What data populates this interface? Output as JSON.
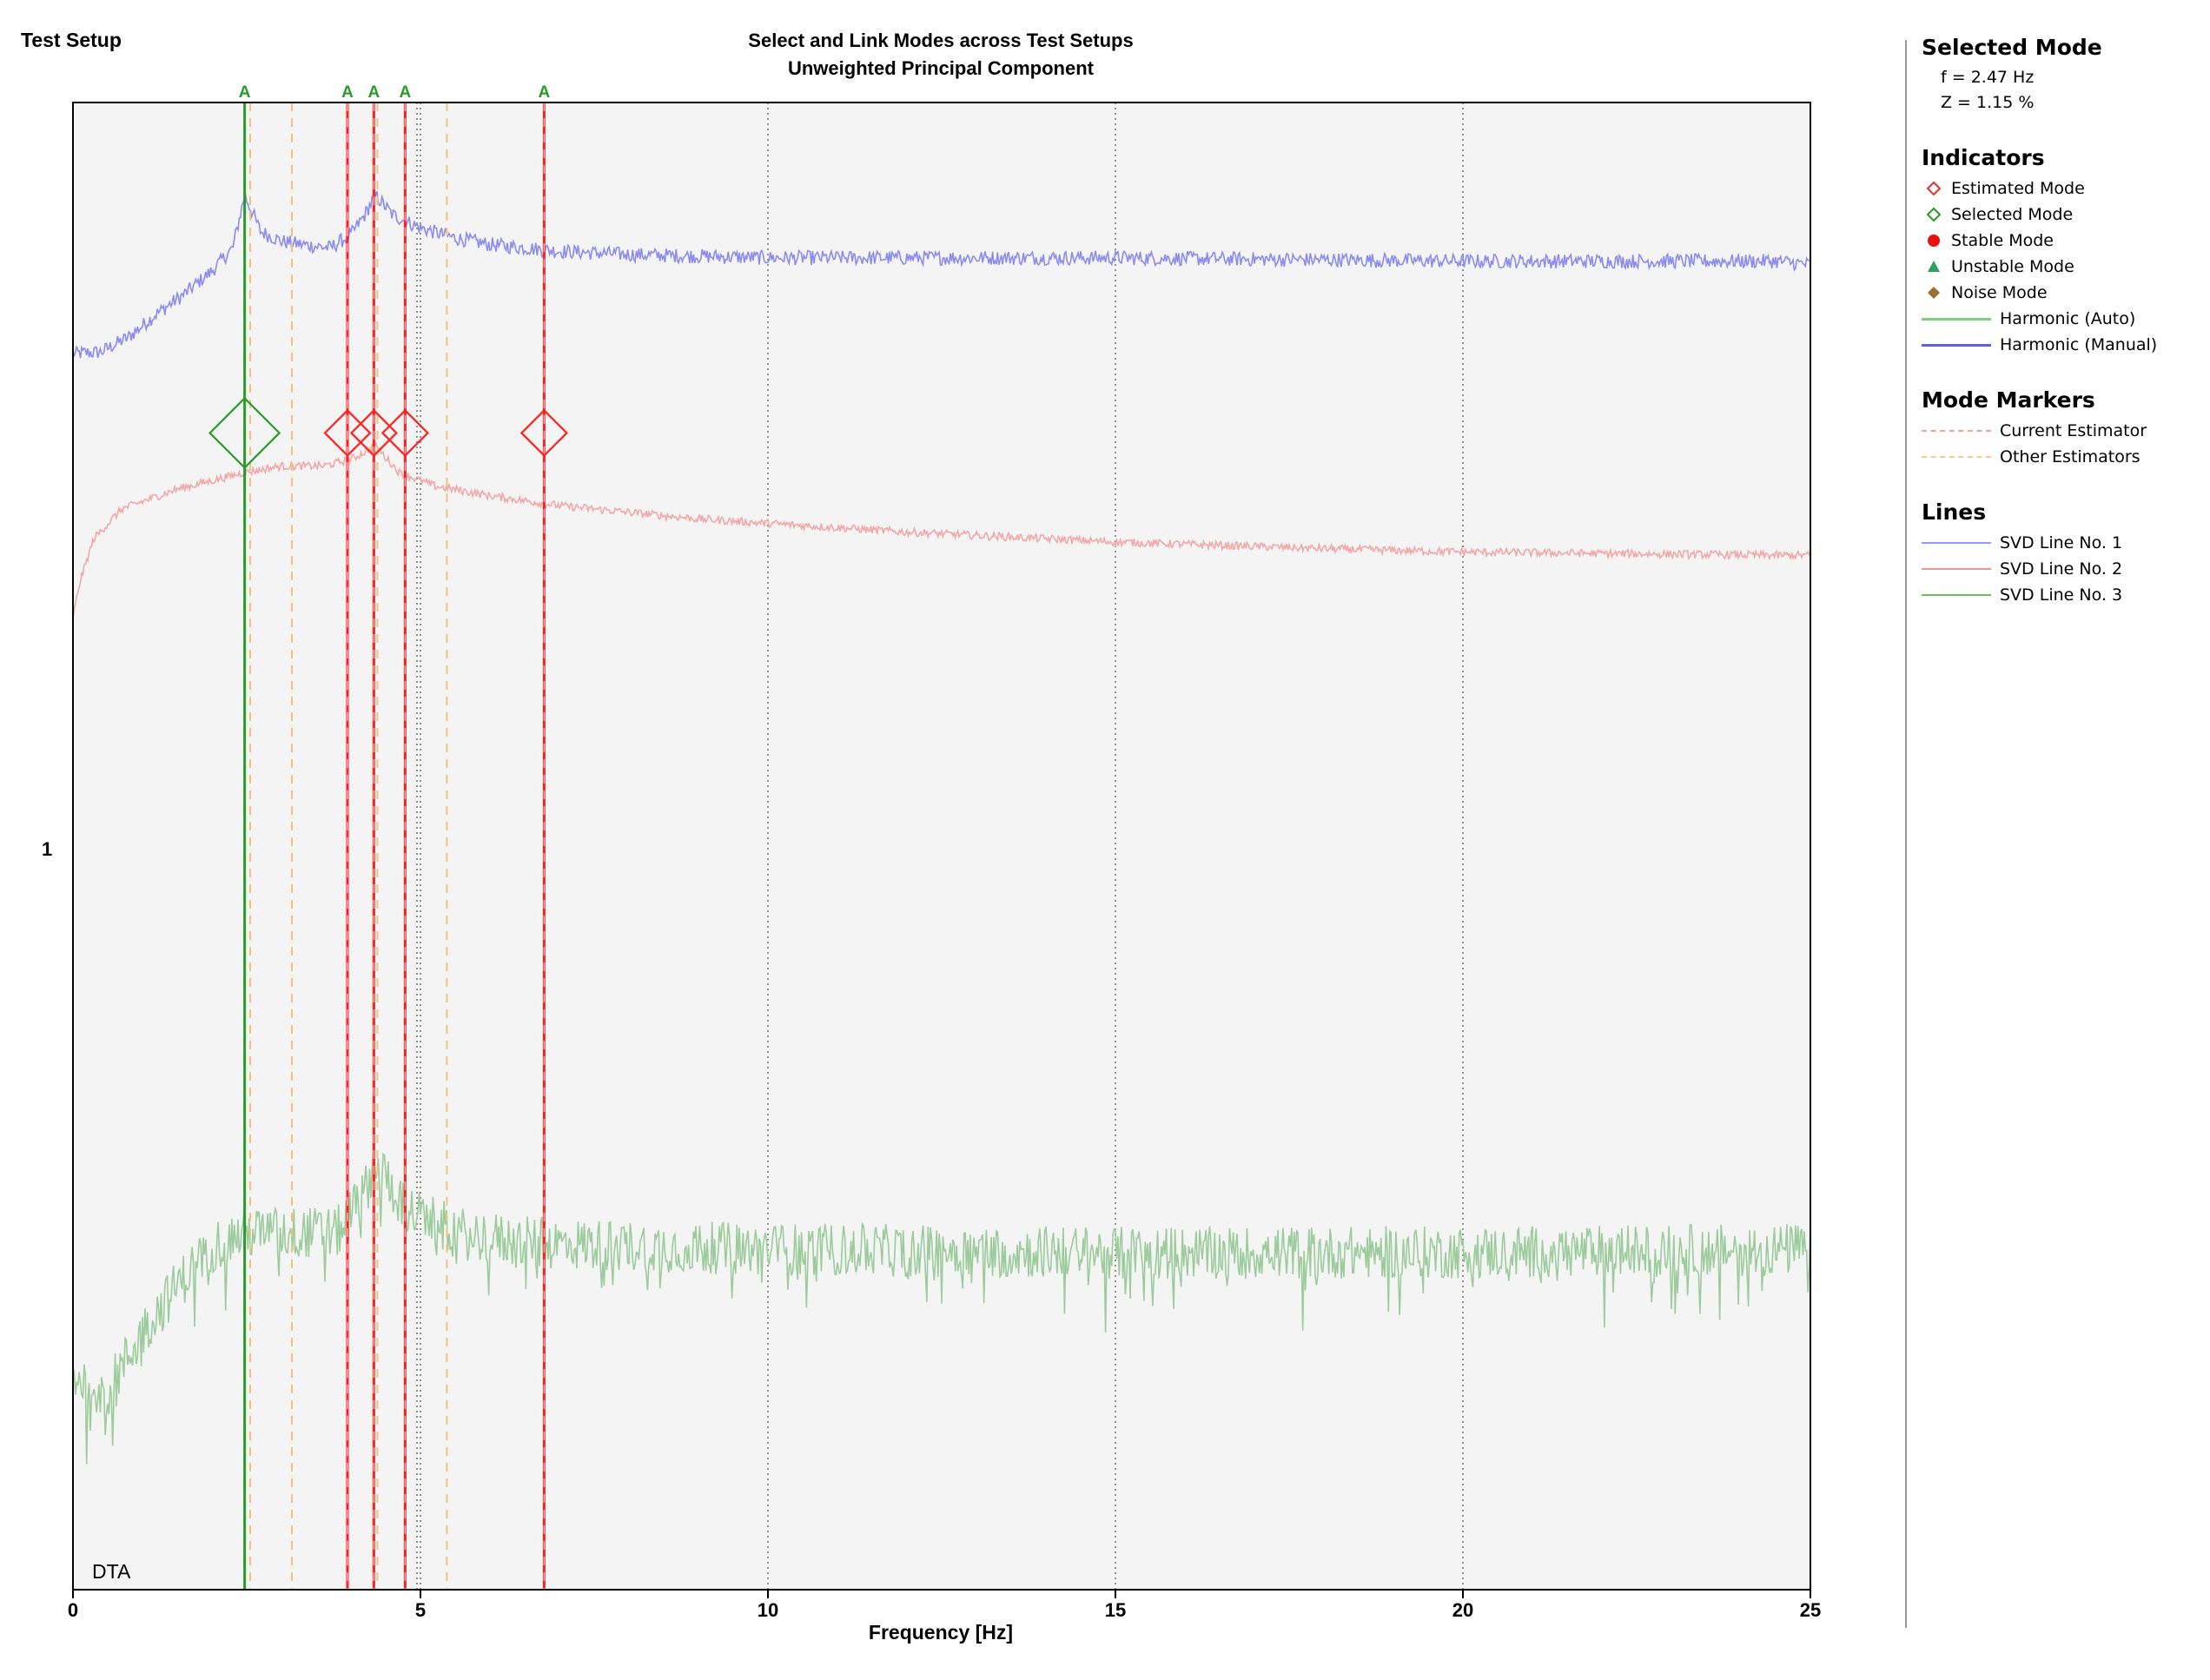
{
  "chart_data": {
    "type": "line",
    "panel_label": "Test Setup",
    "title": "Select and Link Modes across Test Setups",
    "subtitle": "Unweighted Principal Component",
    "xlabel": "Frequency [Hz]",
    "xlim": [
      0,
      25
    ],
    "x_ticks": [
      "0",
      "5",
      "10",
      "15",
      "20",
      "25"
    ],
    "y_tick_label": "1",
    "corner_label": "DTA",
    "grid": "vertical-dotted",
    "background": "#f4f4f4",
    "series": [
      {
        "name": "SVD Line No. 1",
        "color": "#8c8cf0",
        "noise": 0.022,
        "x": [
          0,
          0.4,
          0.8,
          1.2,
          1.6,
          2.0,
          2.3,
          2.47,
          2.7,
          3.0,
          3.3,
          3.7,
          4.0,
          4.2,
          4.35,
          4.6,
          4.8,
          5.0,
          5.5,
          6.0,
          7.0,
          8.0,
          10.0,
          15.0,
          20.0,
          24.5,
          25.0
        ],
        "y": [
          0.24,
          0.245,
          0.29,
          0.36,
          0.42,
          0.49,
          0.56,
          0.72,
          0.61,
          0.58,
          0.57,
          0.56,
          0.6,
          0.66,
          0.72,
          0.66,
          0.64,
          0.62,
          0.59,
          0.57,
          0.55,
          0.54,
          0.53,
          0.53,
          0.52,
          0.52,
          0.51
        ]
      },
      {
        "name": "SVD Line No. 2",
        "color": "#f0a8a8",
        "noise": 0.012,
        "x": [
          0,
          0.1,
          0.3,
          0.7,
          1.5,
          2.47,
          3.0,
          3.6,
          4.0,
          4.35,
          4.7,
          5.2,
          6.0,
          7.0,
          9.0,
          12.0,
          15.0,
          18.0,
          20.0,
          24.5,
          25.0
        ],
        "y": [
          -0.56,
          -0.45,
          -0.32,
          -0.23,
          -0.17,
          -0.12,
          -0.1,
          -0.1,
          -0.08,
          -0.04,
          -0.12,
          -0.16,
          -0.19,
          -0.22,
          -0.26,
          -0.3,
          -0.33,
          -0.35,
          -0.36,
          -0.37,
          -0.37
        ]
      },
      {
        "name": "SVD Line No. 3",
        "color": "#9ccb9c",
        "noise": 0.08,
        "x": [
          0,
          0.5,
          1.0,
          1.5,
          2.0,
          2.47,
          3.0,
          3.8,
          4.2,
          4.35,
          4.8,
          5.5,
          6.5,
          8.0,
          10.0,
          15.0,
          20.0,
          25.0
        ],
        "y": [
          -2.85,
          -2.9,
          -2.72,
          -2.58,
          -2.46,
          -2.42,
          -2.42,
          -2.42,
          -2.3,
          -2.2,
          -2.35,
          -2.42,
          -2.45,
          -2.46,
          -2.47,
          -2.48,
          -2.48,
          -2.47
        ]
      }
    ],
    "selected_mode_lines": [
      {
        "x": 2.47,
        "label": "A",
        "color": "#2a9a2a"
      }
    ],
    "current_estimator_modes": [
      {
        "x": 3.95,
        "label": "A"
      },
      {
        "x": 4.33,
        "label": "A"
      },
      {
        "x": 4.78,
        "label": "A"
      },
      {
        "x": 6.78,
        "label": "A"
      }
    ],
    "other_estimator_lines": [
      2.55,
      3.15,
      4.38,
      5.38
    ],
    "dotted_markers": [
      4.95
    ],
    "mode_y": 0
  },
  "legend": {
    "selected_mode": {
      "title": "Selected Mode",
      "frequency": "f = 2.47 Hz",
      "damping": "Z = 1.15 %"
    },
    "indicators": {
      "title": "Indicators",
      "items": [
        {
          "label": "Estimated Mode",
          "icon": "red-diamond-outline-icon",
          "color": "#e03030"
        },
        {
          "label": "Selected Mode",
          "icon": "green-diamond-outline-icon",
          "color": "#2a9a2a"
        },
        {
          "label": "Stable Mode",
          "icon": "red-circle-icon",
          "color": "#e81010"
        },
        {
          "label": "Unstable Mode",
          "icon": "green-triangle-icon",
          "color": "#30a060"
        },
        {
          "label": "Noise Mode",
          "icon": "brown-diamond-icon",
          "color": "#9a7030"
        },
        {
          "label": "Harmonic (Auto)",
          "icon": "line",
          "color": "#7ccf7c"
        },
        {
          "label": "Harmonic (Manual)",
          "icon": "line",
          "color": "#6060e0"
        }
      ]
    },
    "mode_markers": {
      "title": "Mode Markers",
      "items": [
        {
          "label": "Current Estimator",
          "color": "#f0a0a0"
        },
        {
          "label": "Other Estimators",
          "color": "#f5cc88"
        }
      ]
    },
    "lines": {
      "title": "Lines",
      "items": [
        {
          "label": "SVD Line No. 1",
          "color": "#9a9af0"
        },
        {
          "label": "SVD Line No. 2",
          "color": "#f09090"
        },
        {
          "label": "SVD Line No. 3",
          "color": "#70b870"
        }
      ]
    }
  }
}
